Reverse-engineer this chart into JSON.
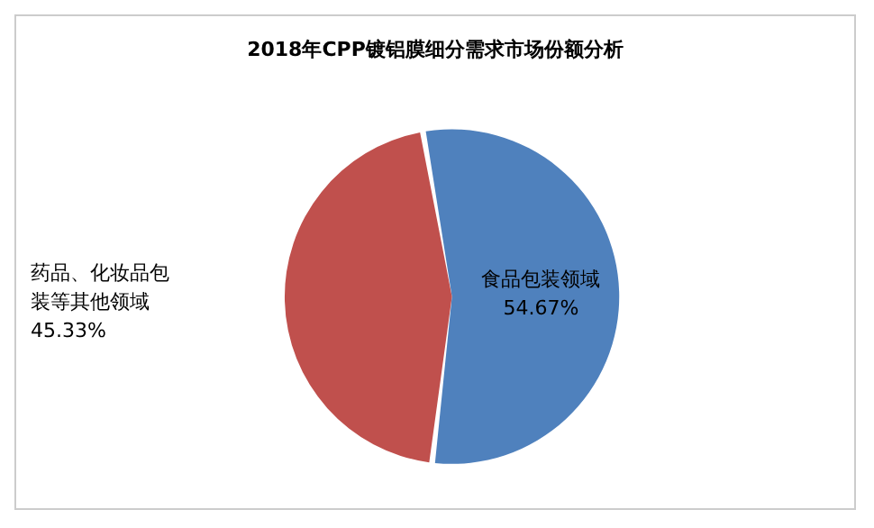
{
  "chart_data": {
    "type": "pie",
    "title": "2018年CPP镀铝膜细分需求市场份额分析",
    "categories": [
      "食品包装领域",
      "药品、化妆品包装等其他领域"
    ],
    "values": [
      54.67,
      45.33
    ],
    "colors": [
      "#4f81bd",
      "#c0504d"
    ],
    "value_labels": [
      "54.67%",
      "45.33%"
    ],
    "legend": false
  }
}
